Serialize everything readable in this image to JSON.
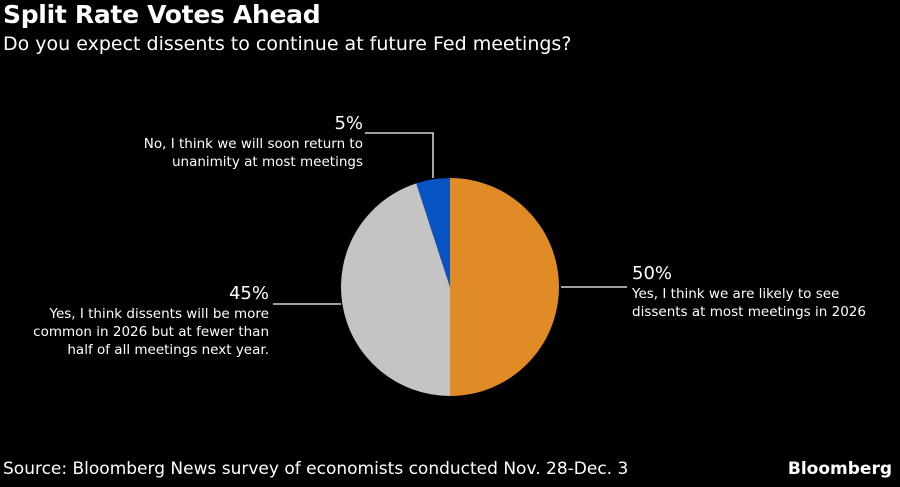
{
  "chart_data": {
    "type": "pie",
    "title": "Split Rate Votes Ahead",
    "subtitle": "Do you expect dissents to continue at future Fed meetings?",
    "slices": [
      {
        "label": "Yes, I think we are likely to see dissents at most meetings in 2026",
        "value": 50,
        "value_label": "50%",
        "color": "#E08B26"
      },
      {
        "label": "Yes, I think dissents will be more common in 2026 but at fewer than half of all meetings next year.",
        "value": 45,
        "value_label": "45%",
        "color": "#C4C4C4"
      },
      {
        "label": "No, I think we will soon return to unanimity at most meetings",
        "value": 5,
        "value_label": "5%",
        "color": "#0853C2"
      }
    ],
    "start": "top, clockwise"
  },
  "labels": {
    "no": {
      "pct": "5%",
      "line1": "No, I think we will soon return to",
      "line2": "unanimity at most meetings"
    },
    "yes_fewer": {
      "pct": "45%",
      "line1": "Yes, I think dissents will be more",
      "line2": "common in 2026 but at fewer than",
      "line3": "half of all meetings next year."
    },
    "yes_most": {
      "pct": "50%",
      "line1": "Yes, I think we are likely to see",
      "line2": "dissents at most meetings in 2026"
    }
  },
  "footer": {
    "source": "Source: Bloomberg News survey of economists conducted Nov. 28-Dec. 3",
    "brand": "Bloomberg"
  }
}
